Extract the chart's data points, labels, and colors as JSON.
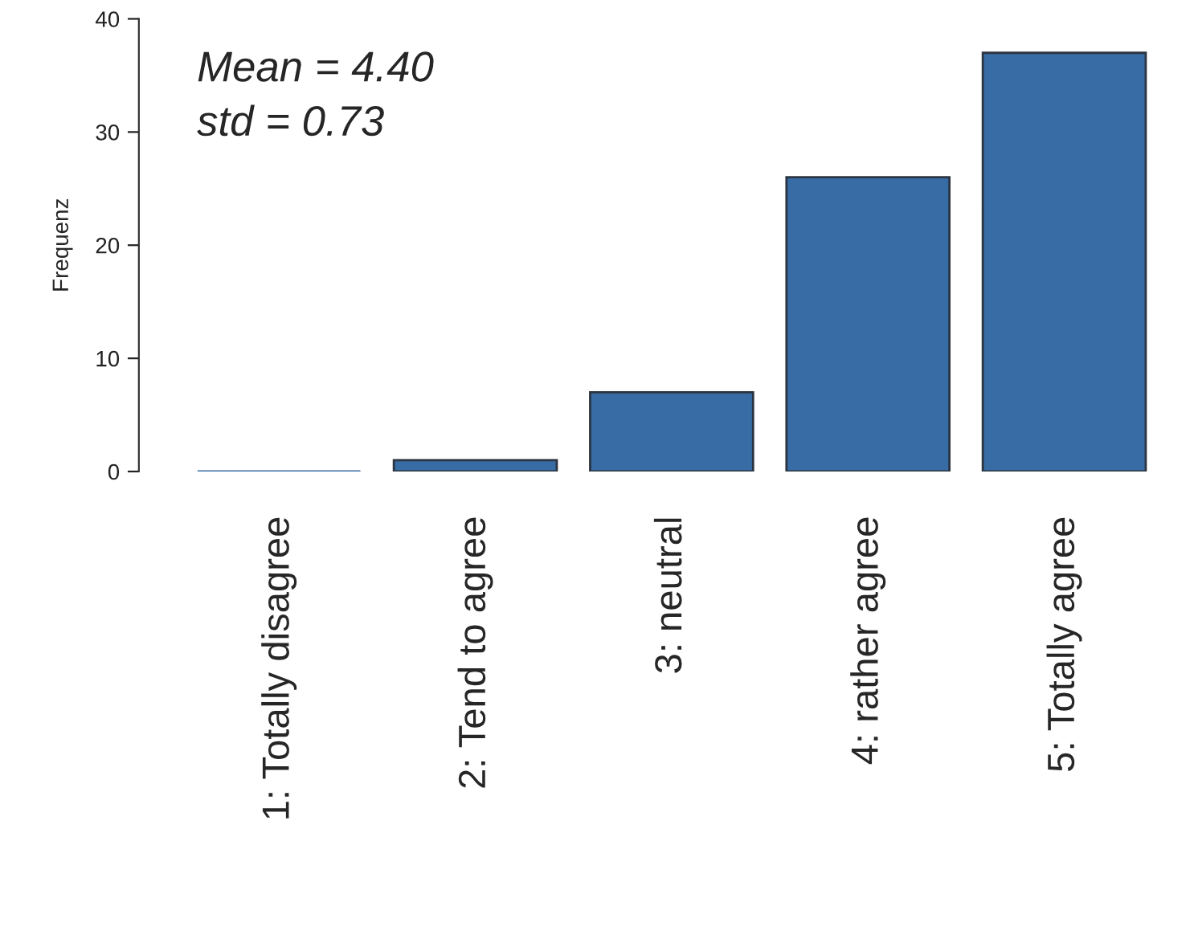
{
  "chart_data": {
    "type": "bar",
    "ylabel": "Frequenz",
    "categories": [
      "1: Totally disagree",
      "2: Tend to agree",
      "3: neutral",
      "4: rather agree",
      "5: Totally agree"
    ],
    "values": [
      0,
      1,
      7,
      26,
      37
    ],
    "color": "#386ca5",
    "ylim": [
      0,
      40
    ],
    "yticks": [
      0,
      10,
      20,
      30,
      40
    ],
    "grid": false,
    "annotations": [
      "Mean = 4.40",
      "std = 0.73"
    ]
  }
}
